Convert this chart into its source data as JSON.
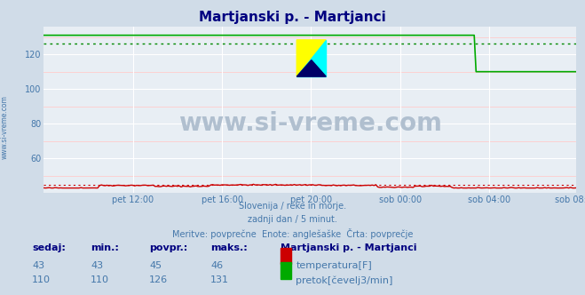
{
  "title": "Martjanski p. - Martjanci",
  "bg_color": "#d0dce8",
  "plot_bg_color": "#e8eef4",
  "grid_color_major": "#ffffff",
  "grid_color_minor": "#ffcccc",
  "title_color": "#000080",
  "text_color": "#4477aa",
  "xlabel_ticks": [
    "pet 12:00",
    "pet 16:00",
    "pet 20:00",
    "sob 00:00",
    "sob 04:00",
    "sob 08:00"
  ],
  "ylabel_ticks": [
    60,
    80,
    100,
    120
  ],
  "ylim": [
    40,
    136
  ],
  "xlim": [
    0,
    287
  ],
  "subtitle_lines": [
    "Slovenija / reke in morje.",
    "zadnji dan / 5 minut.",
    "Meritve: povprečne  Enote: anglešaške  Črta: povprečje"
  ],
  "temp_color": "#cc0000",
  "flow_color": "#00aa00",
  "temp_dot_color": "#cc0000",
  "flow_dot_color": "#008800",
  "watermark_text": "www.si-vreme.com",
  "watermark_color": "#b0bfcf",
  "legend_title": "Martjanski p. - Martjanci",
  "legend_title_color": "#000080",
  "legend_entries": [
    "temperatura[F]",
    "pretok[čevelj3/min]"
  ],
  "legend_colors": [
    "#cc0000",
    "#00aa00"
  ],
  "stats_headers": [
    "sedaj:",
    "min.:",
    "povpr.:",
    "maks.:"
  ],
  "stats_temp": [
    43,
    43,
    45,
    46
  ],
  "stats_flow": [
    110,
    110,
    126,
    131
  ],
  "temp_avg": 45,
  "flow_avg": 126,
  "x_tick_positions": [
    48,
    96,
    144,
    192,
    240,
    287
  ]
}
